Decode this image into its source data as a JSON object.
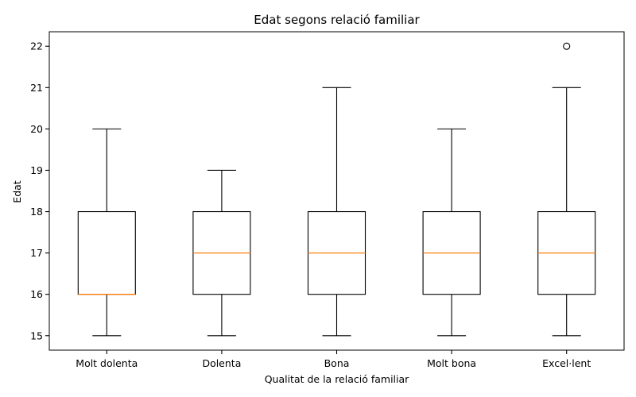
{
  "chart_data": {
    "type": "box",
    "title": "Edat segons relació familiar",
    "xlabel": "Qualitat de la relació familiar",
    "ylabel": "Edat",
    "ylim": [
      14.65,
      22.35
    ],
    "yticks": [
      15,
      16,
      17,
      18,
      19,
      20,
      21,
      22
    ],
    "categories": [
      "Molt dolenta",
      "Dolenta",
      "Bona",
      "Molt bona",
      "Excel·lent"
    ],
    "boxes": [
      {
        "whisker_low": 15,
        "q1": 16,
        "median": 16,
        "q3": 18,
        "whisker_high": 20,
        "outliers": []
      },
      {
        "whisker_low": 15,
        "q1": 16,
        "median": 17,
        "q3": 18,
        "whisker_high": 19,
        "outliers": []
      },
      {
        "whisker_low": 15,
        "q1": 16,
        "median": 17,
        "q3": 18,
        "whisker_high": 21,
        "outliers": []
      },
      {
        "whisker_low": 15,
        "q1": 16,
        "median": 17,
        "q3": 18,
        "whisker_high": 20,
        "outliers": []
      },
      {
        "whisker_low": 15,
        "q1": 16,
        "median": 17,
        "q3": 18,
        "whisker_high": 21,
        "outliers": [
          22
        ]
      }
    ],
    "colors": {
      "box": "#000000",
      "median": "#ff7f0e",
      "background": "#ffffff"
    },
    "grid": false
  }
}
